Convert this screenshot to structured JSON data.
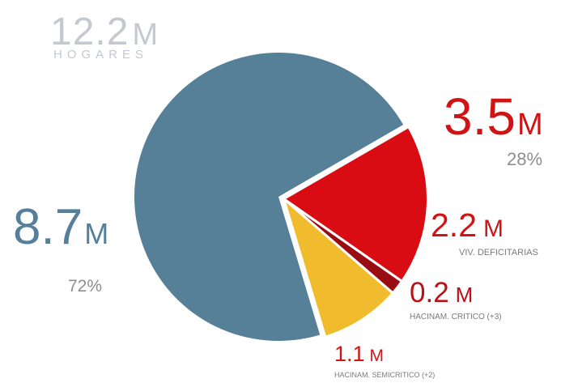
{
  "chart_data": {
    "type": "pie",
    "total": {
      "value": "12.2",
      "unit": "M",
      "label": "HOGARES"
    },
    "slices": [
      {
        "value": 8.7,
        "value_text": "8.7",
        "unit": "M",
        "percent_text": "72%",
        "color": "#567f98"
      },
      {
        "value": 2.2,
        "value_text": "2.2",
        "unit": "M",
        "label": "VIV. DEFICITARIAS",
        "color": "#d80c12"
      },
      {
        "value": 0.2,
        "value_text": "0.2",
        "unit": "M",
        "label": "HACINAM. CRITICO (+3)",
        "color": "#9a0c14"
      },
      {
        "value": 1.1,
        "value_text": "1.1",
        "unit": "M",
        "label": "HACINAM. SEMICRITICO (+2)",
        "color": "#f0bb2c"
      }
    ],
    "group": {
      "value": 3.5,
      "value_text": "3.5",
      "unit": "M",
      "percent_text": "28%",
      "color": "#cf1416"
    }
  }
}
